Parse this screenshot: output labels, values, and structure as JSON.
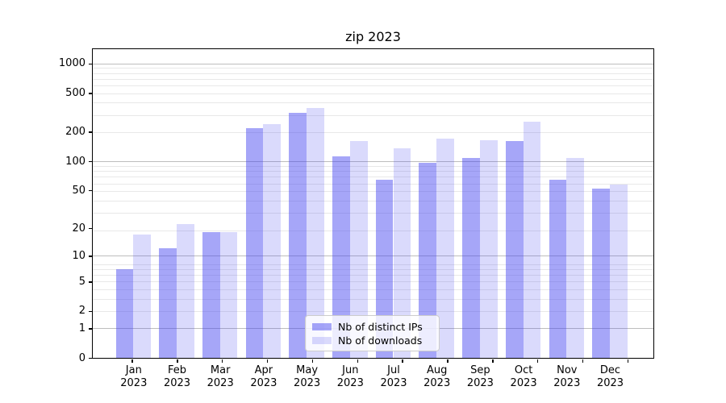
{
  "title": "zip 2023",
  "chart_data": {
    "type": "bar",
    "title": "zip 2023",
    "categories": [
      "Jan 2023",
      "Feb 2023",
      "Mar 2023",
      "Apr 2023",
      "May 2023",
      "Jun 2023",
      "Jul 2023",
      "Aug 2023",
      "Sep 2023",
      "Oct 2023",
      "Nov 2023",
      "Dec 2023"
    ],
    "series": [
      {
        "name": "Nb of distinct IPs",
        "values": [
          7,
          12,
          18,
          220,
          315,
          112,
          64,
          96,
          108,
          160,
          65,
          52
        ],
        "color": "rgba(70,70,240,0.48)"
      },
      {
        "name": "Nb of downloads",
        "values": [
          17,
          22,
          18,
          240,
          350,
          160,
          135,
          172,
          164,
          257,
          108,
          57
        ],
        "color": "rgba(70,70,240,0.20)"
      }
    ],
    "y_scale": "log1p",
    "y_ticks": [
      0,
      1,
      2,
      5,
      10,
      20,
      50,
      100,
      200,
      500,
      1000
    ],
    "y_major_ticks": [
      1,
      10,
      100,
      1000
    ],
    "ylim": [
      0,
      1415
    ],
    "grid": true,
    "legend_position": "lower center"
  },
  "colors": {
    "major_grid": "#bdbdbd",
    "minor_grid": "#e8e8e8",
    "spine": "#000000",
    "background": "#ffffff"
  }
}
